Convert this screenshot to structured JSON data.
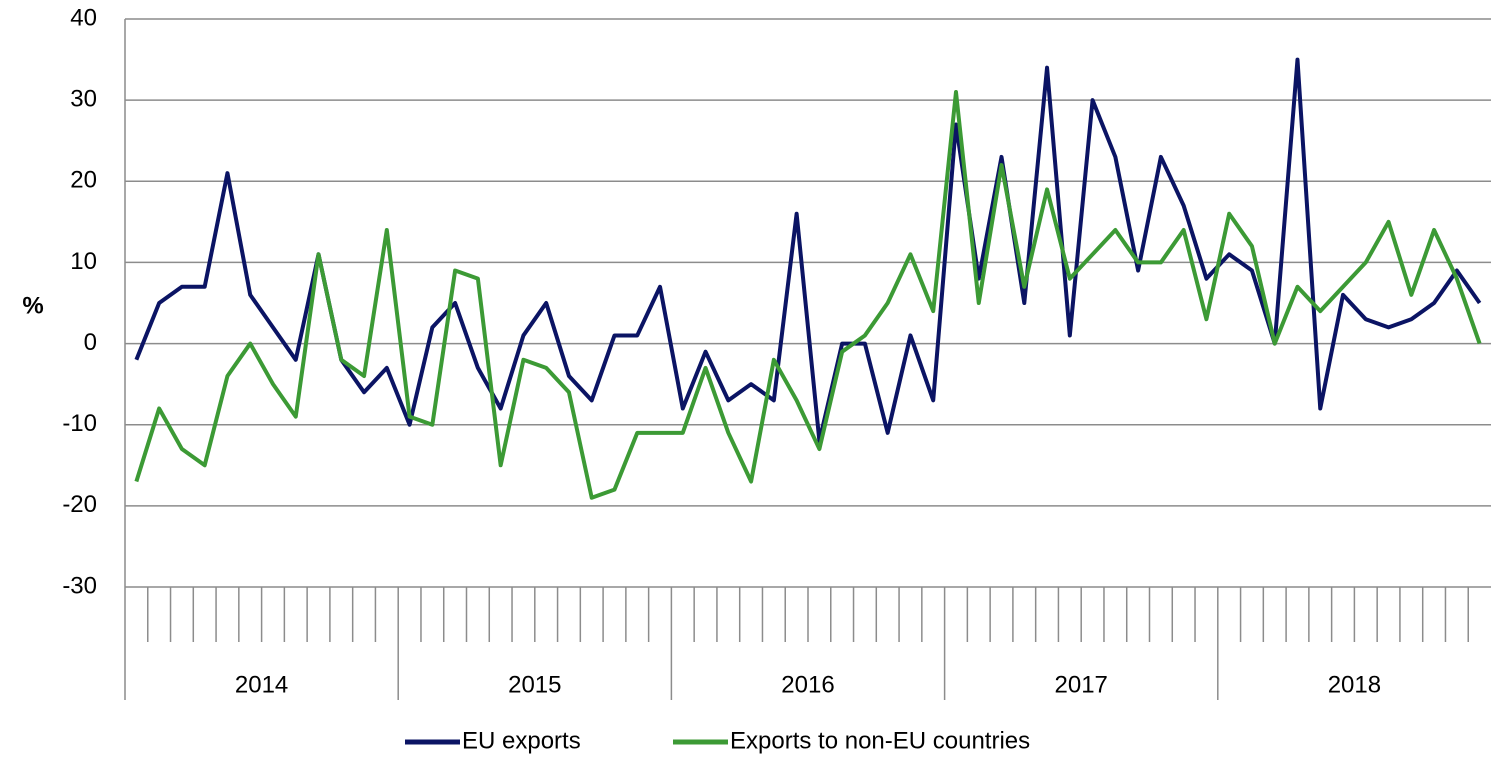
{
  "chart_data": {
    "type": "line",
    "ylabel": "%",
    "categories": [
      null,
      null,
      null,
      null,
      null,
      null,
      null,
      null,
      null,
      null,
      null,
      null,
      null,
      null,
      null,
      null,
      null,
      null,
      null,
      null,
      null,
      null,
      null,
      null,
      null,
      null,
      null,
      null,
      null,
      null,
      null,
      null,
      null,
      null,
      null,
      null,
      null,
      null,
      null,
      null,
      null,
      null,
      null,
      null,
      null,
      null,
      null,
      null,
      null,
      null,
      null,
      null,
      null,
      null,
      null,
      null,
      null,
      null,
      null,
      null
    ],
    "groups": [
      "2014",
      "2015",
      "2016",
      "2017",
      "2018"
    ],
    "series": [
      {
        "name": "EU exports",
        "color": "#0b1464",
        "values": [
          -2,
          5,
          7,
          7,
          21,
          6,
          2,
          -2,
          11,
          -2,
          -6,
          -3,
          -10,
          2,
          5,
          -3,
          -8,
          1,
          5,
          -4,
          -7,
          1,
          1,
          7,
          -8,
          -1,
          -7,
          -5,
          -7,
          16,
          -12,
          0,
          0,
          -11,
          1,
          -7,
          27,
          8,
          23,
          5,
          34,
          1,
          30,
          23,
          9,
          23,
          17,
          8,
          11,
          9,
          0,
          35,
          -8,
          6,
          3,
          2,
          3,
          5,
          9,
          5
        ]
      },
      {
        "name": "Exports to non-EU countries",
        "color": "#3c9a35",
        "values": [
          -17,
          -8,
          -13,
          -15,
          -4,
          0,
          -5,
          -9,
          11,
          -2,
          -4,
          14,
          -9,
          -10,
          9,
          8,
          -15,
          -2,
          -3,
          -6,
          -19,
          -18,
          -11,
          -11,
          -11,
          -3,
          -11,
          -17,
          -2,
          -7,
          -13,
          -1,
          1,
          5,
          11,
          4,
          31,
          5,
          22,
          7,
          19,
          8,
          11,
          14,
          10,
          10,
          14,
          3,
          16,
          12,
          0,
          7,
          4,
          7,
          10,
          15,
          6,
          14,
          8,
          0
        ]
      }
    ],
    "ylim": [
      -30,
      40
    ],
    "yticks": [
      -30,
      -20,
      -10,
      0,
      10,
      20,
      30,
      40
    ],
    "grid": true,
    "legend": "bottom"
  }
}
